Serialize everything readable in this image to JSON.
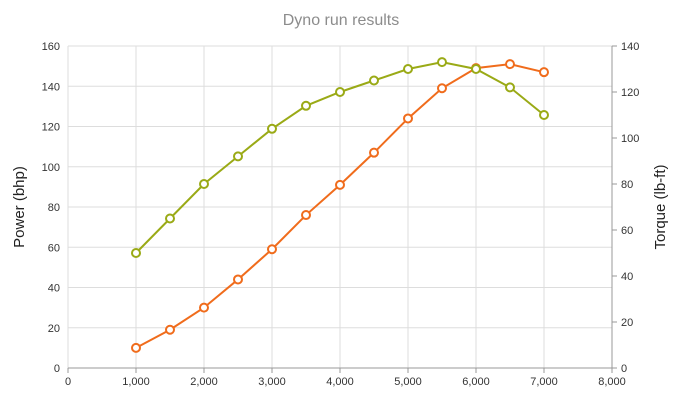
{
  "chart_data": {
    "type": "line",
    "title": "Dyno run results",
    "xlabel": "",
    "xlim": [
      0,
      8000
    ],
    "xticks": [
      "0",
      "1,000",
      "2,000",
      "3,000",
      "4,000",
      "5,000",
      "6,000",
      "7,000",
      "8,000"
    ],
    "ylabel": "Power (bhp)",
    "ylim": [
      0,
      160
    ],
    "yticks": [
      "0",
      "20",
      "40",
      "60",
      "80",
      "100",
      "120",
      "140",
      "160"
    ],
    "y2label": "Torque (lb-ft)",
    "y2lim": [
      0,
      140
    ],
    "y2ticks": [
      "0",
      "20",
      "40",
      "60",
      "80",
      "100",
      "120",
      "140"
    ],
    "grid": true,
    "legend": "none",
    "x": [
      1000,
      1500,
      2000,
      2500,
      3000,
      3500,
      4000,
      4500,
      5000,
      5500,
      6000,
      6500,
      7000
    ],
    "series": [
      {
        "axis": "left",
        "color": "#f06c1c",
        "values": [
          10,
          19,
          30,
          44,
          59,
          76,
          91,
          107,
          124,
          139,
          149,
          151,
          147
        ]
      },
      {
        "axis": "right",
        "color": "#9aaa16",
        "values": [
          50,
          65,
          80,
          92,
          104,
          114,
          120,
          125,
          130,
          133,
          130,
          122,
          110
        ]
      }
    ]
  }
}
